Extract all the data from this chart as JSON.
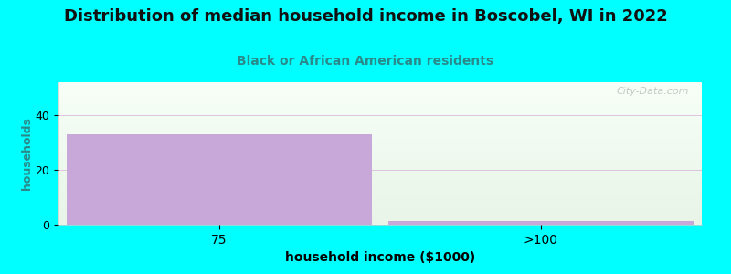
{
  "title": "Distribution of median household income in Boscobel, WI in 2022",
  "subtitle": "Black or African American residents",
  "categories": [
    "75",
    ">100"
  ],
  "values": [
    33,
    1.5
  ],
  "bar_color": "#c8a8d8",
  "background_color": "#00FFFF",
  "xlabel": "household income ($1000)",
  "ylabel": "households",
  "ylim": [
    0,
    52
  ],
  "yticks": [
    0,
    20,
    40
  ],
  "title_fontsize": 13,
  "subtitle_fontsize": 10,
  "xlabel_fontsize": 10,
  "ylabel_fontsize": 9,
  "title_color": "#111111",
  "subtitle_color": "#2a8a8a",
  "ylabel_color": "#2a8a8a",
  "watermark": "City-Data.com"
}
